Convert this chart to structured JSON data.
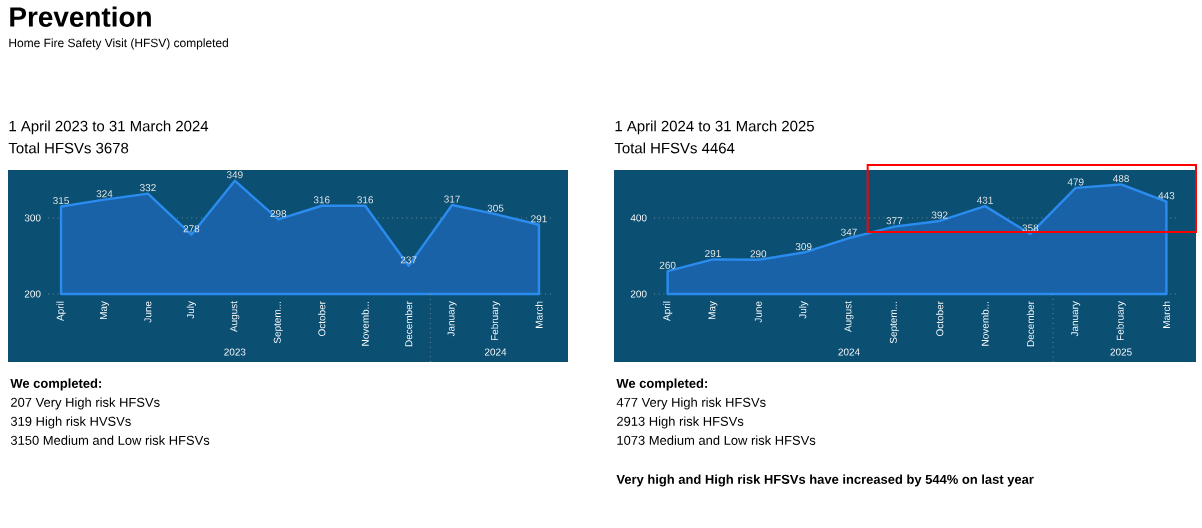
{
  "chart_data": [
    {
      "type": "other",
      "title": "Prevention",
      "subtitle": "Home Fire Safety Visit (HFSV) completed"
    },
    {
      "type": "area",
      "title": "1 April 2023 to 31 March 2024",
      "subtitle": "Total HFSVs 3678",
      "categories": [
        "April",
        "May",
        "June",
        "July",
        "August",
        "Septem...",
        "October",
        "Novemb...",
        "December",
        "January",
        "February",
        "March"
      ],
      "series": [
        {
          "color": "#2b8cf0",
          "values": [
            315,
            324,
            332,
            278,
            349,
            298,
            316,
            316,
            237,
            317,
            305,
            291
          ]
        }
      ],
      "ylim": [
        200,
        363
      ],
      "yticks": [
        200,
        300
      ],
      "grid": "y",
      "data_labels": true,
      "marker": "none",
      "annotations": [
        "2023",
        "2024",
        "We completed:",
        "207 Very High risk HFSVs",
        "319 High risk HVSVs",
        "3150 Medium and Low risk HFSVs"
      ]
    },
    {
      "type": "area",
      "title": "1 April 2024 to 31 March 2025",
      "subtitle": "Total HFSVs 4464",
      "categories": [
        "April",
        "May",
        "June",
        "July",
        "August",
        "Septem...",
        "October",
        "Novemb...",
        "December",
        "January",
        "February",
        "March"
      ],
      "series": [
        {
          "color": "#2b8cf0",
          "values": [
            260,
            291,
            290,
            309,
            347,
            377,
            392,
            431,
            358,
            479,
            488,
            443
          ]
        }
      ],
      "ylim": [
        200,
        526
      ],
      "yticks": [
        200,
        400
      ],
      "grid": "y",
      "data_labels": true,
      "marker": "none",
      "annotations": [
        "2024",
        "2025",
        "We completed:",
        "477 Very High risk HFSVs",
        "2913 High risk HFSVs",
        "1073 Medium and Low risk HFSVs",
        "Very high and High risk HFSVs have increased by 544% on last year"
      ]
    }
  ]
}
